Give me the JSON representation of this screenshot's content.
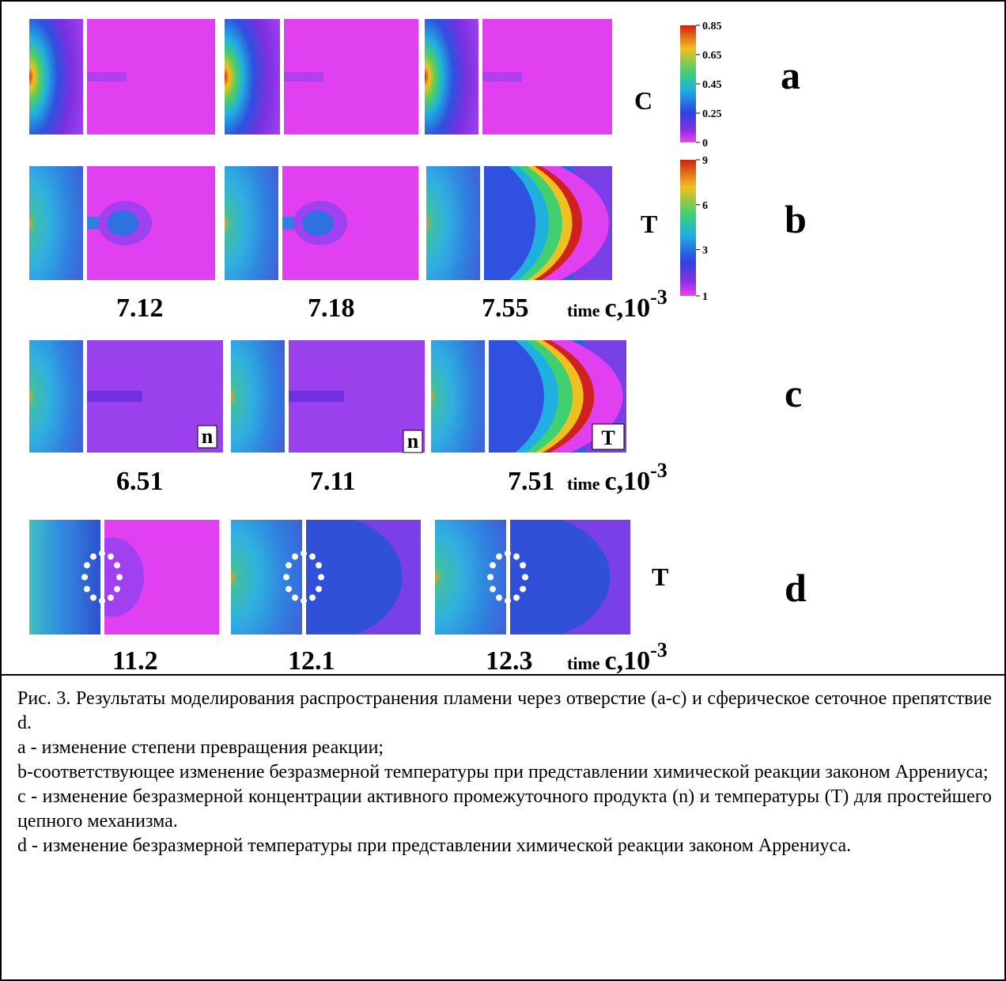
{
  "figure": {
    "colorbars": [
      {
        "ticks": [
          "0.85",
          "0.65",
          "0.45",
          "0.25",
          "0"
        ]
      },
      {
        "ticks": [
          "9",
          "6",
          "3",
          "1"
        ]
      }
    ],
    "rows": [
      {
        "letter": "a",
        "field": "C"
      },
      {
        "letter": "b",
        "field": "T",
        "times": [
          "7.12",
          "7.18",
          "7.55"
        ],
        "time_prefix": "time",
        "time_unit": "c,10",
        "time_exp": "-3"
      },
      {
        "letter": "c",
        "panel_labels": [
          "n",
          "n",
          "T"
        ],
        "times": [
          "6.51",
          "7.11",
          "7.51"
        ],
        "time_prefix": "time",
        "time_unit": "c,10",
        "time_exp": "-3"
      },
      {
        "letter": "d",
        "field": "T",
        "times": [
          "11.2",
          "12.1",
          "12.3"
        ],
        "time_prefix": "time",
        "time_unit": "c,10",
        "time_exp": "-3"
      }
    ]
  },
  "caption": {
    "paragraphs": [
      "Рис. 3. Результаты моделирования распространения пламени через отверстие (а-с) и сферическое сеточное препятствие d.",
      "а - изменение степени превращения реакции;",
      "b-соответствующее изменение безразмерной температуры при представлении химической реакции законом Аррениуса;",
      "с - изменение безразмерной концентрации активного промежуточного продукта (n) и температуры (Т) для простейшего цепного механизма.",
      "d - изменение безразмерной температуры при представлении химической реакции законом Аррениуса."
    ]
  }
}
